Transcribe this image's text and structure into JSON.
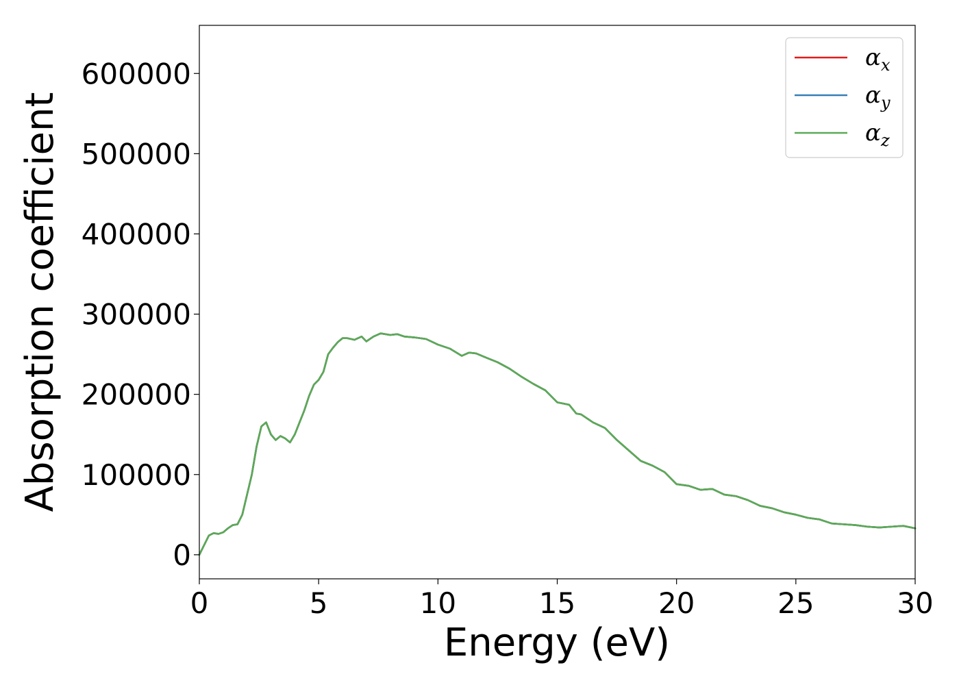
{
  "chart_data": {
    "type": "line",
    "xlabel": "Energy (eV)",
    "ylabel": "Absorption coefficient",
    "xlim": [
      0,
      30
    ],
    "ylim": [
      -30000,
      660000
    ],
    "xticks": [
      0,
      5,
      10,
      15,
      20,
      25,
      30
    ],
    "xtick_labels": [
      "0",
      "5",
      "10",
      "15",
      "20",
      "25",
      "30"
    ],
    "yticks": [
      0,
      100000,
      200000,
      300000,
      400000,
      500000,
      600000
    ],
    "ytick_labels": [
      "0",
      "100000",
      "200000",
      "300000",
      "400000",
      "500000",
      "600000"
    ],
    "grid": false,
    "legend_position": "top-right",
    "x": [
      0,
      0.2,
      0.4,
      0.6,
      0.8,
      1.0,
      1.2,
      1.4,
      1.6,
      1.8,
      2.0,
      2.2,
      2.4,
      2.6,
      2.8,
      3.0,
      3.2,
      3.4,
      3.6,
      3.8,
      4.0,
      4.2,
      4.4,
      4.6,
      4.8,
      5.0,
      5.2,
      5.4,
      5.6,
      5.8,
      6.0,
      6.2,
      6.5,
      6.8,
      7.0,
      7.3,
      7.6,
      8.0,
      8.3,
      8.6,
      9.0,
      9.5,
      10.0,
      10.5,
      11.0,
      11.3,
      11.6,
      12.0,
      12.5,
      13.0,
      13.5,
      14.0,
      14.5,
      15.0,
      15.5,
      15.8,
      16.0,
      16.5,
      17.0,
      17.5,
      18.0,
      18.5,
      19.0,
      19.5,
      20.0,
      20.5,
      21.0,
      21.5,
      22.0,
      22.5,
      23.0,
      23.5,
      24.0,
      24.5,
      25.0,
      25.5,
      26.0,
      26.5,
      27.0,
      27.5,
      28.0,
      28.5,
      29.0,
      29.5,
      30.0
    ],
    "series": [
      {
        "name": "α_x",
        "label_main": "α",
        "label_sub": "x",
        "color": "#e41a1c",
        "y": [
          0,
          12000,
          24000,
          27000,
          26000,
          28000,
          33000,
          37000,
          38000,
          50000,
          75000,
          100000,
          135000,
          160000,
          165000,
          150000,
          143000,
          148000,
          145000,
          140000,
          150000,
          165000,
          180000,
          198000,
          212000,
          218000,
          228000,
          250000,
          258000,
          265000,
          270000,
          270000,
          268000,
          272000,
          266000,
          272000,
          276000,
          274000,
          275000,
          272000,
          271000,
          269000,
          262000,
          257000,
          248000,
          252000,
          251000,
          246000,
          240000,
          232000,
          222000,
          213000,
          205000,
          190000,
          187000,
          176000,
          175000,
          165000,
          158000,
          143000,
          130000,
          117000,
          111000,
          103000,
          88000,
          86000,
          81000,
          82000,
          75000,
          73000,
          68000,
          61000,
          58000,
          53000,
          50000,
          46000,
          44000,
          39000,
          38000,
          37000,
          35000,
          34000,
          35000,
          36000,
          33000
        ]
      },
      {
        "name": "α_y",
        "label_main": "α",
        "label_sub": "y",
        "color": "#377eb8",
        "y": [
          0,
          12000,
          24000,
          27000,
          26000,
          28000,
          33000,
          37000,
          38000,
          50000,
          75000,
          100000,
          135000,
          160000,
          165000,
          150000,
          143000,
          148000,
          145000,
          140000,
          150000,
          165000,
          180000,
          198000,
          212000,
          218000,
          228000,
          250000,
          258000,
          265000,
          270000,
          270000,
          268000,
          272000,
          266000,
          272000,
          276000,
          274000,
          275000,
          272000,
          271000,
          269000,
          262000,
          257000,
          248000,
          252000,
          251000,
          246000,
          240000,
          232000,
          222000,
          213000,
          205000,
          190000,
          187000,
          176000,
          175000,
          165000,
          158000,
          143000,
          130000,
          117000,
          111000,
          103000,
          88000,
          86000,
          81000,
          82000,
          75000,
          73000,
          68000,
          61000,
          58000,
          53000,
          50000,
          46000,
          44000,
          39000,
          38000,
          37000,
          35000,
          34000,
          35000,
          36000,
          33000
        ]
      },
      {
        "name": "α_z",
        "label_main": "α",
        "label_sub": "z",
        "color": "#5aaa55",
        "y": [
          0,
          12000,
          24000,
          27000,
          26000,
          28000,
          33000,
          37000,
          38000,
          50000,
          75000,
          100000,
          135000,
          160000,
          165000,
          150000,
          143000,
          148000,
          145000,
          140000,
          150000,
          165000,
          180000,
          198000,
          212000,
          218000,
          228000,
          250000,
          258000,
          265000,
          270000,
          270000,
          268000,
          272000,
          266000,
          272000,
          276000,
          274000,
          275000,
          272000,
          271000,
          269000,
          262000,
          257000,
          248000,
          252000,
          251000,
          246000,
          240000,
          232000,
          222000,
          213000,
          205000,
          190000,
          187000,
          176000,
          175000,
          165000,
          158000,
          143000,
          130000,
          117000,
          111000,
          103000,
          88000,
          86000,
          81000,
          82000,
          75000,
          73000,
          68000,
          61000,
          58000,
          53000,
          50000,
          46000,
          44000,
          39000,
          38000,
          37000,
          35000,
          34000,
          35000,
          36000,
          33000
        ]
      }
    ]
  }
}
